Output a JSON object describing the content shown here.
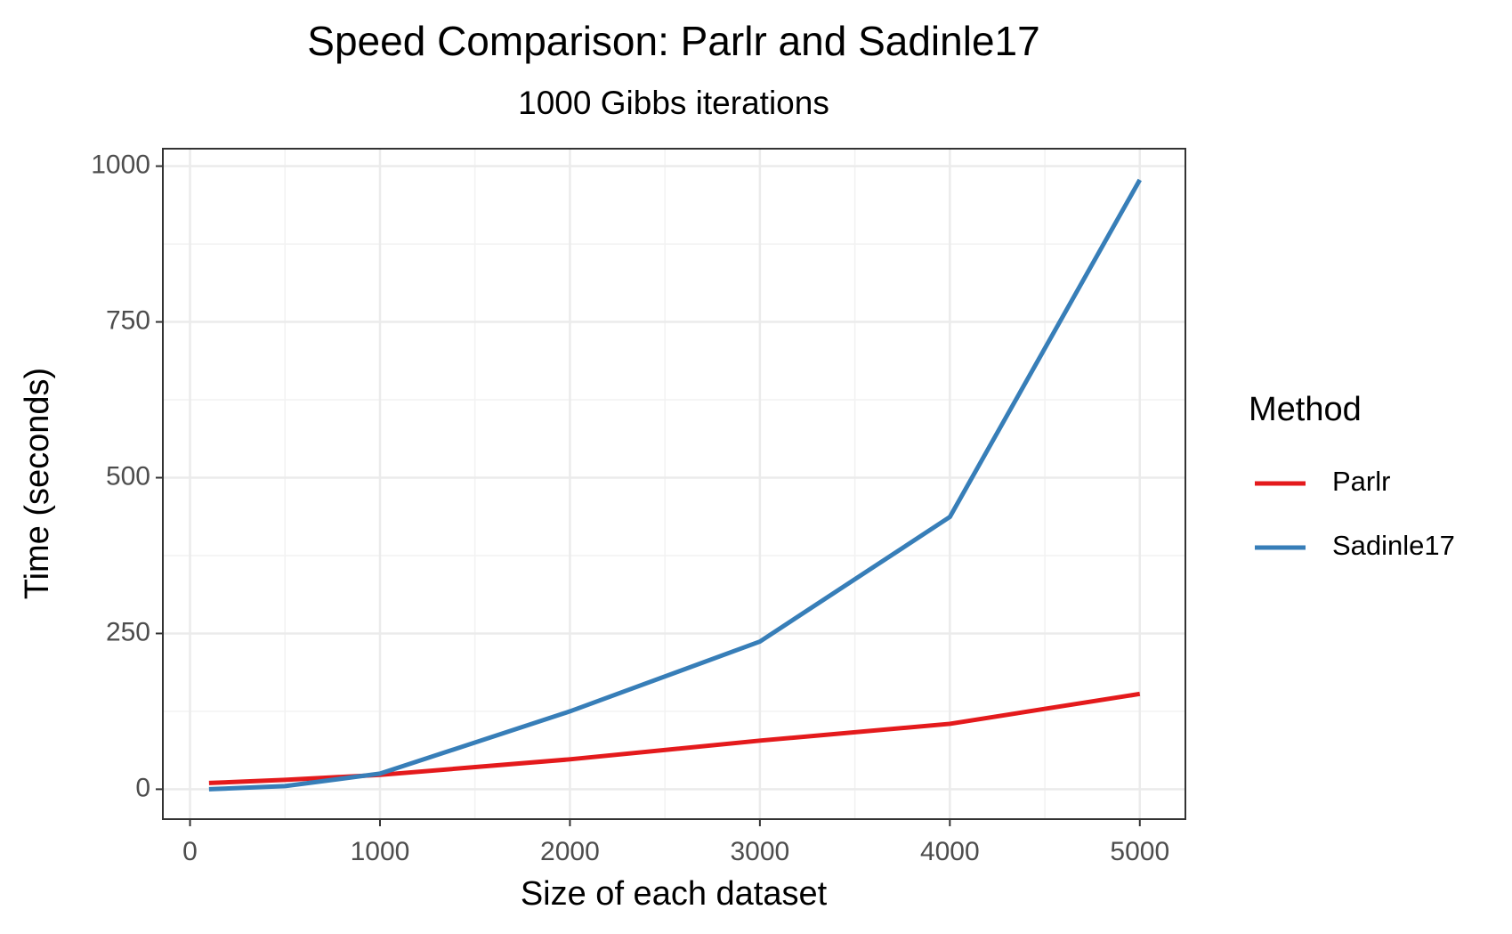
{
  "chart_data": {
    "type": "line",
    "title": "Speed Comparison: Parlr and Sadinle17",
    "subtitle": "1000 Gibbs iterations",
    "x_label": "Size of each dataset",
    "y_label": "Time (seconds)",
    "legend_title": "Method",
    "legend_position": "right",
    "grid": true,
    "x": [
      100,
      500,
      1000,
      2000,
      3000,
      4000,
      5000
    ],
    "series": [
      {
        "name": "Parlr",
        "color": "#e41a1c",
        "values": [
          10,
          15,
          23,
          48,
          78,
          105,
          153
        ]
      },
      {
        "name": "Sadinle17",
        "color": "#377eb8",
        "values": [
          0,
          5,
          25,
          125,
          237,
          437,
          978
        ]
      }
    ],
    "xlim": [
      -143,
      5240
    ],
    "ylim": [
      -48,
      1028
    ],
    "xticks": [
      0,
      1000,
      2000,
      3000,
      4000,
      5000
    ],
    "yticks": [
      0,
      250,
      500,
      750,
      1000
    ]
  }
}
